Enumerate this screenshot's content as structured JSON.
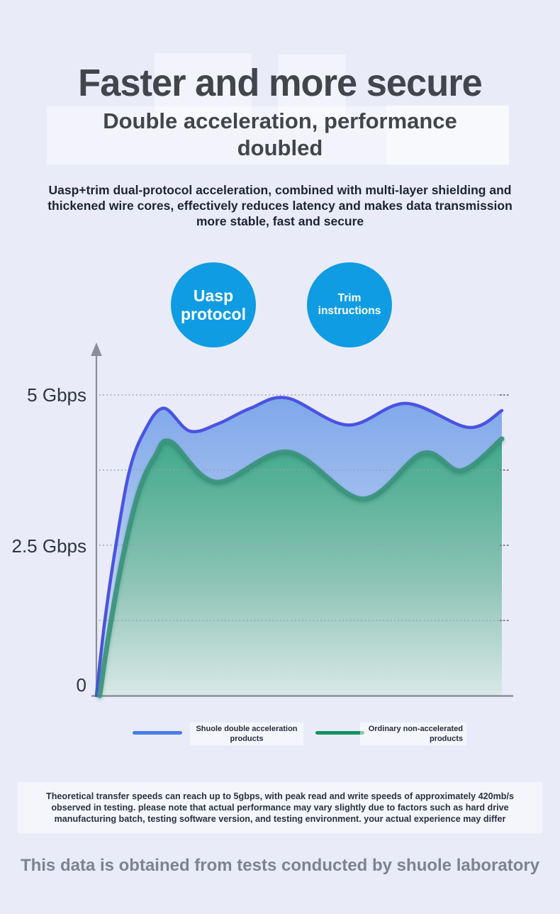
{
  "header": {
    "title": "Faster and more secure",
    "subtitle": "Double acceleration, performance doubled",
    "description": "Uasp+trim dual-protocol acceleration, combined with multi-layer shielding and thickened wire cores, effectively reduces latency and makes data transmission more stable, fast and secure"
  },
  "badges": [
    {
      "label": "Uasp protocol",
      "color": "#0f9ce2"
    },
    {
      "label": "Trim instructions",
      "color": "#0f9ce2"
    }
  ],
  "chart_data": {
    "type": "area",
    "title": "",
    "xlabel": "",
    "ylabel": "",
    "ylim": [
      0,
      5.8
    ],
    "x_range": [
      0,
      1
    ],
    "grid": "dotted-horizontal",
    "gridline_values": [
      5,
      3.75,
      2.5,
      1.25
    ],
    "yticks": [
      {
        "label": "5 Gbps",
        "value": 5
      },
      {
        "label": "2.5 Gbps",
        "value": 2.5
      },
      {
        "label": "0",
        "value": 0
      }
    ],
    "series": [
      {
        "name": "Shuole double acceleration products",
        "unit": "Gbps",
        "line_color": "#4a53e2",
        "fill_stops": [
          [
            "0%",
            "#7fa7e9"
          ],
          [
            "45%",
            "#a9c4f1"
          ],
          [
            "100%",
            "#e7edfb"
          ]
        ],
        "points": [
          [
            0,
            0
          ],
          [
            0.02,
            1.2
          ],
          [
            0.048,
            2.5
          ],
          [
            0.08,
            3.7
          ],
          [
            0.115,
            4.35
          ],
          [
            0.165,
            4.78
          ],
          [
            0.23,
            4.4
          ],
          [
            0.3,
            4.52
          ],
          [
            0.38,
            4.78
          ],
          [
            0.47,
            4.95
          ],
          [
            0.62,
            4.5
          ],
          [
            0.763,
            4.86
          ],
          [
            0.918,
            4.46
          ],
          [
            1,
            4.74
          ]
        ]
      },
      {
        "name": "Ordinary non-accelerated products",
        "unit": "Gbps",
        "line_color": "#3b947c",
        "fill_stops": [
          [
            "0%",
            "#3fa98a"
          ],
          [
            "55%",
            "#8cc3b4"
          ],
          [
            "100%",
            "#d8e8e7"
          ]
        ],
        "points": [
          [
            0.008,
            0
          ],
          [
            0.03,
            1.0
          ],
          [
            0.065,
            2.3
          ],
          [
            0.105,
            3.4
          ],
          [
            0.145,
            3.98
          ],
          [
            0.183,
            4.22
          ],
          [
            0.295,
            3.55
          ],
          [
            0.473,
            4.05
          ],
          [
            0.657,
            3.27
          ],
          [
            0.805,
            4.03
          ],
          [
            0.9,
            3.74
          ],
          [
            1,
            4.27
          ]
        ]
      }
    ],
    "legend_position": "bottom"
  },
  "legend": [
    {
      "label": "Shuole double acceleration products",
      "color": "#4a7ce8"
    },
    {
      "label": "Ordinary non-accelerated products",
      "color": "#12945e"
    }
  ],
  "footnote": {
    "text": "Theoretical transfer speeds can reach up to 5gbps, with peak read and write speeds of approximately 420mb/s observed in testing. please note that actual performance may vary slightly due to factors such as hard drive manufacturing batch, testing software version, and testing environment. your actual experience may differ"
  },
  "footer": {
    "text": "This data is obtained from tests conducted by shuole laboratory"
  }
}
